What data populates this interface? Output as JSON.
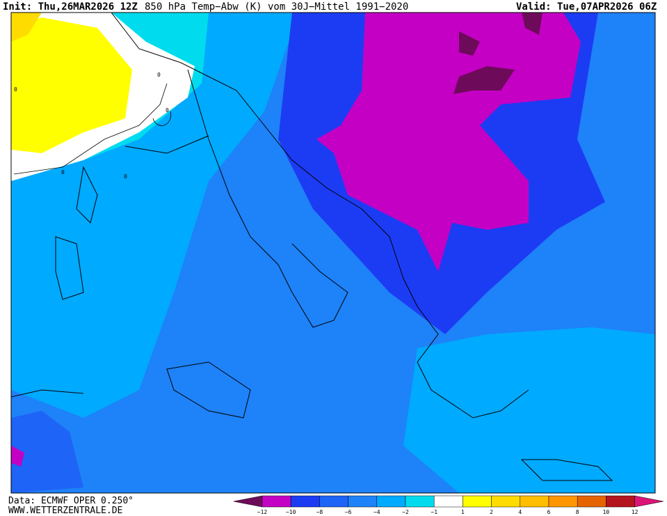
{
  "header": {
    "init": "Init: Thu,26MAR2026 12Z",
    "title": "850 hPa Temp−Abw (K) vom 30J−Mittel 1991−2020",
    "valid": "Valid: Tue,07APR2026 06Z"
  },
  "footer": {
    "source": "Data: ECMWF OPER 0.250°",
    "site": "WWW.WETTERZENTRALE.DE"
  },
  "legend": {
    "ticks": [
      "−12",
      "−10",
      "−8",
      "−6",
      "−4",
      "−2",
      "−1",
      "1",
      "2",
      "4",
      "6",
      "8",
      "10",
      "12"
    ],
    "colors": [
      "#6e0a5a",
      "#c400c4",
      "#1c3cf4",
      "#1e64f6",
      "#1e82f8",
      "#00aaff",
      "#00dcee",
      "#ffffff",
      "#ffff00",
      "#ffdc00",
      "#ffbe00",
      "#ff9600",
      "#e66400",
      "#b4141e",
      "#dc1478"
    ]
  },
  "map": {
    "contour_labels": [
      "0",
      "0",
      "0",
      "0",
      "0"
    ]
  }
}
